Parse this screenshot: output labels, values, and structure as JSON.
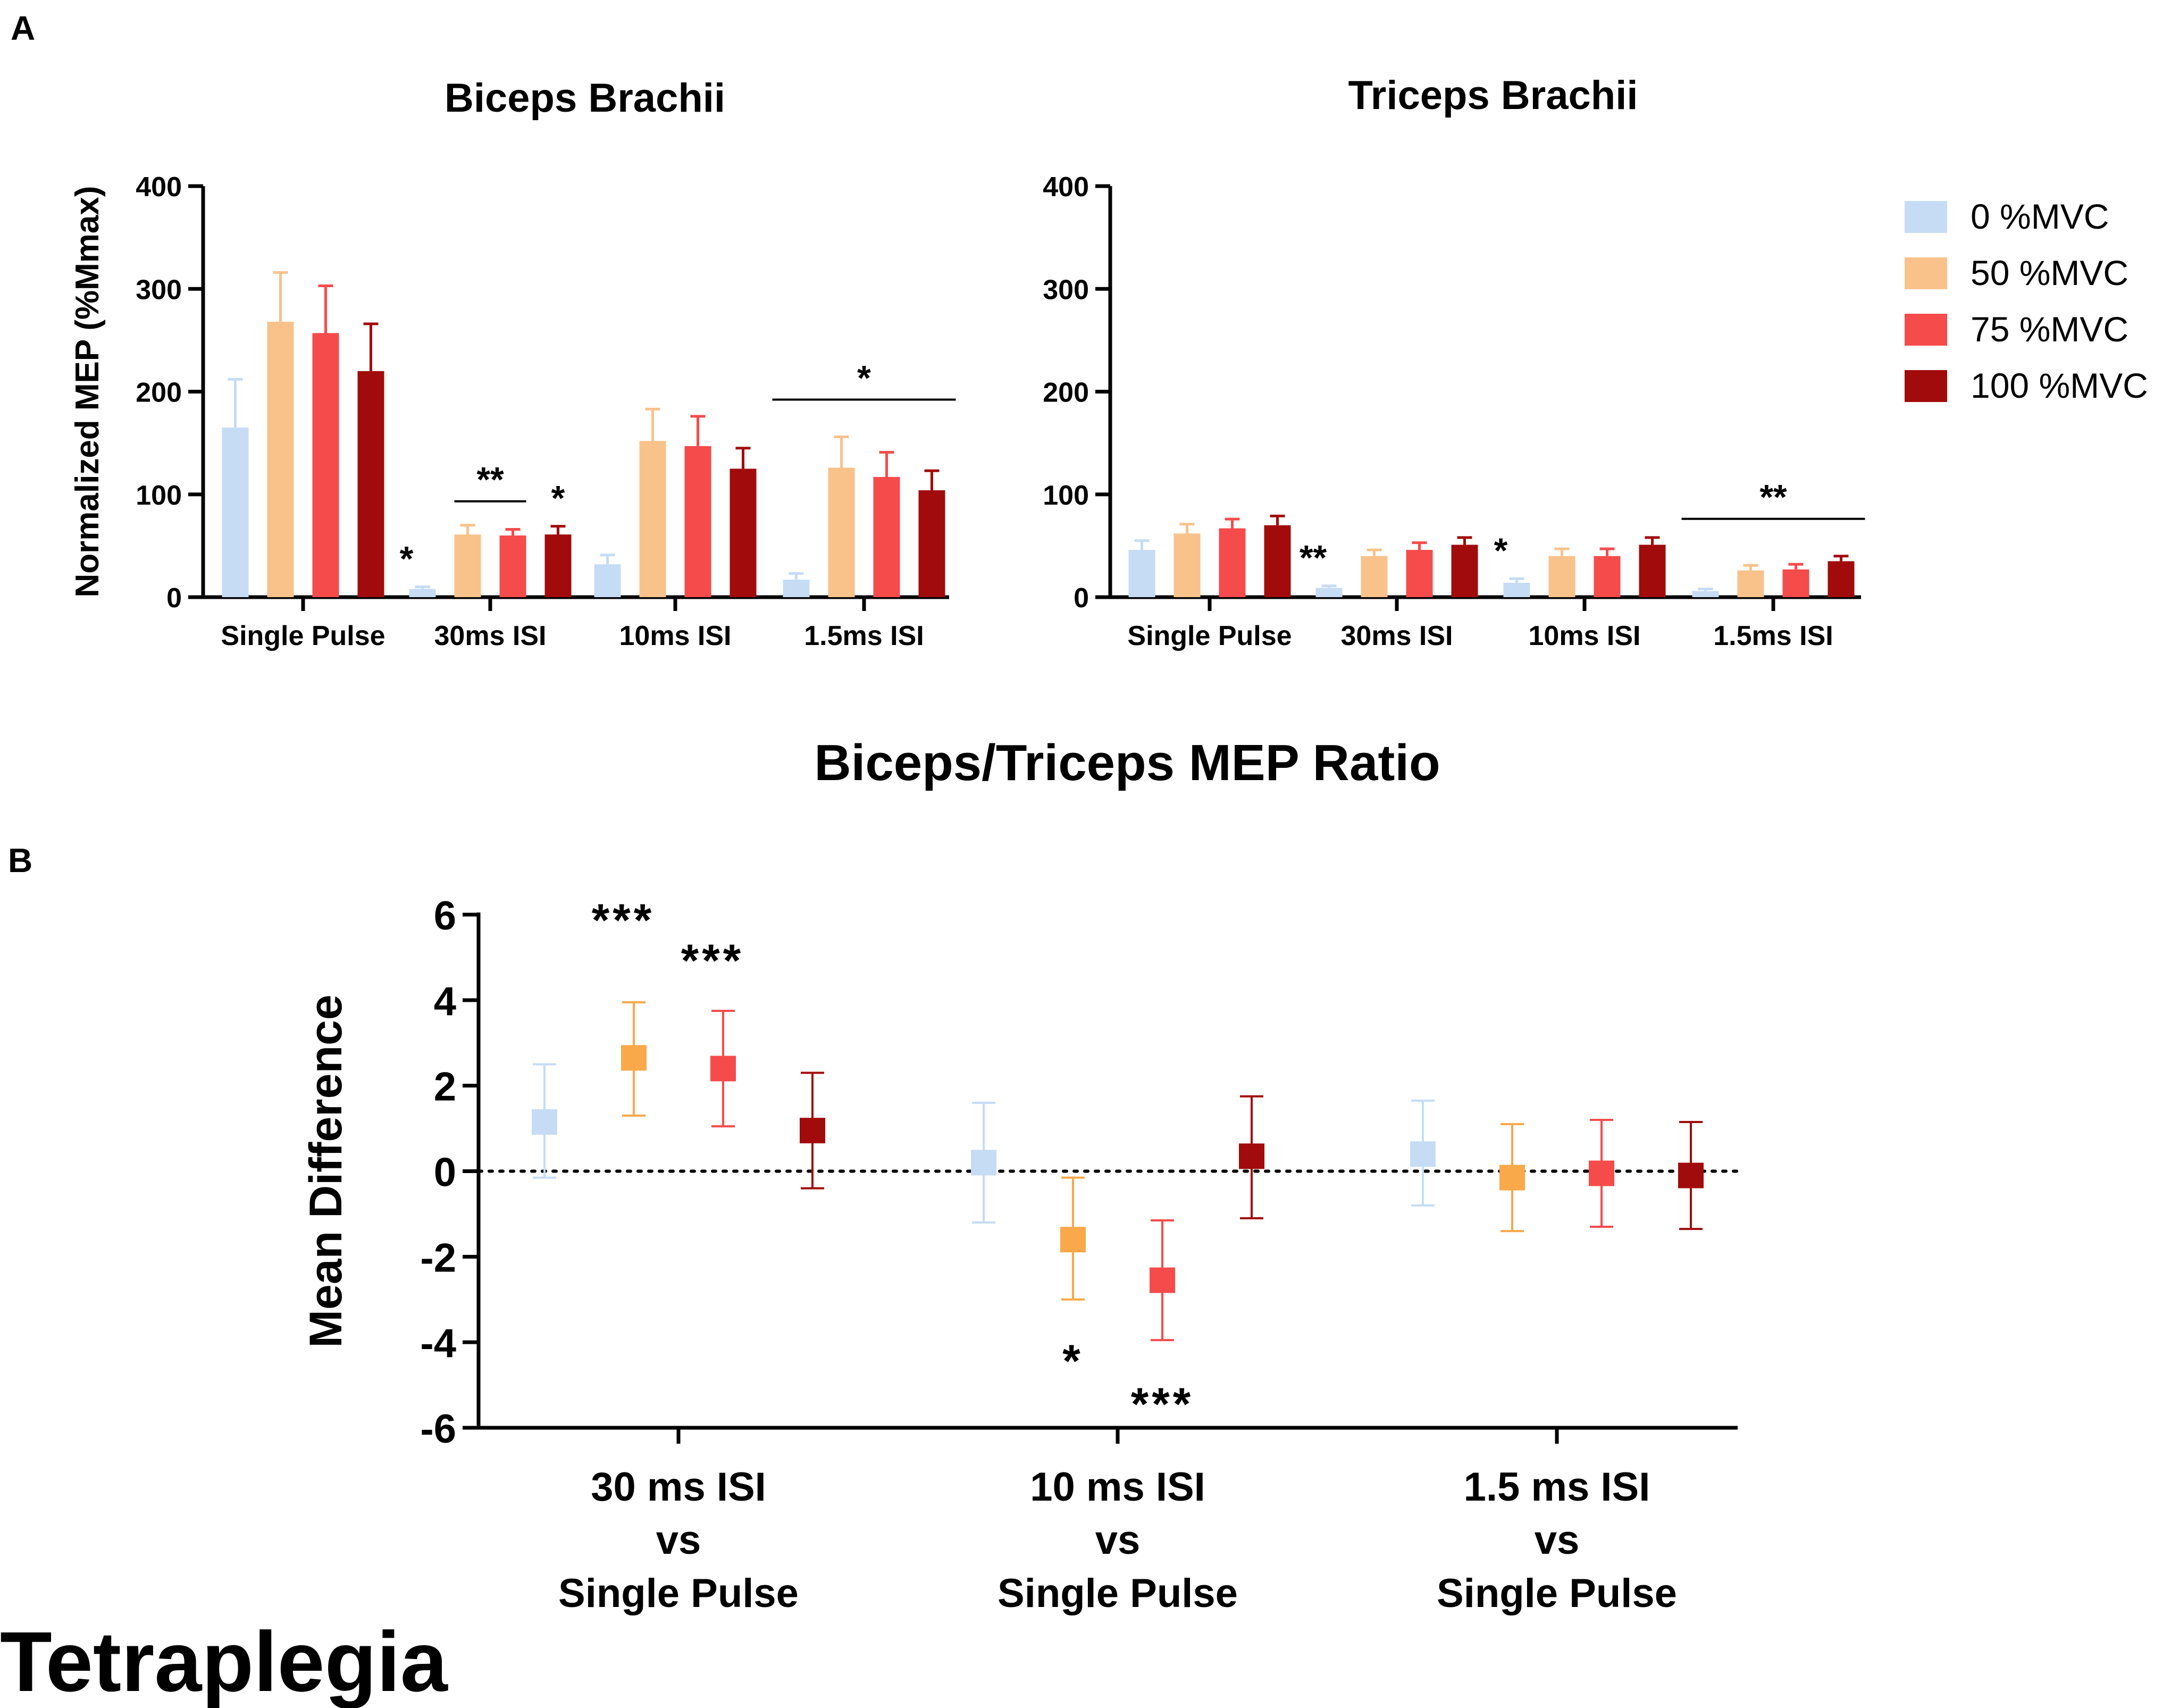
{
  "figure": {
    "panel_a_label": "A",
    "panel_b_label": "B",
    "group_label": "Tetraplegia"
  },
  "legend": [
    {
      "label": "0 %MVC",
      "color": "#c6dcf5"
    },
    {
      "label": "50 %MVC",
      "color": "#f9c28b"
    },
    {
      "label": "75 %MVC",
      "color": "#f64b4b"
    },
    {
      "label": "100 %MVC",
      "color": "#a10b0b"
    }
  ],
  "chart_data": [
    {
      "type": "bar",
      "title": "Biceps Brachii",
      "xlabel": "",
      "ylabel": "Normalized MEP (%Mmax)",
      "ylim": [
        0,
        400
      ],
      "yticks": [
        "0",
        "100",
        "200",
        "300",
        "400"
      ],
      "categories": [
        "Single Pulse",
        "30ms ISI",
        "10ms ISI",
        "1.5ms ISI"
      ],
      "series": [
        {
          "name": "0 %MVC",
          "color": "#c6dcf5",
          "values": [
            165,
            8,
            32,
            17
          ],
          "errors": [
            47,
            2,
            9,
            6
          ]
        },
        {
          "name": "50 %MVC",
          "color": "#f9c28b",
          "values": [
            268,
            61,
            152,
            126
          ],
          "errors": [
            48,
            9,
            31,
            30
          ]
        },
        {
          "name": "75 %MVC",
          "color": "#f64b4b",
          "values": [
            257,
            60,
            147,
            117
          ],
          "errors": [
            46,
            6,
            29,
            24
          ]
        },
        {
          "name": "100 %MVC",
          "color": "#a10b0b",
          "values": [
            220,
            61,
            125,
            104
          ],
          "errors": [
            46,
            8,
            20,
            19
          ]
        }
      ],
      "annotations": [
        {
          "text": "*",
          "category": 1,
          "series": 0
        },
        {
          "text": "**",
          "category": 1,
          "bracket": [
            1,
            2
          ]
        },
        {
          "text": "*",
          "category": 1,
          "series": 3
        },
        {
          "text": "*",
          "category": 3,
          "bracket": [
            0,
            3
          ]
        }
      ]
    },
    {
      "type": "bar",
      "title": "Triceps Brachii",
      "xlabel": "",
      "ylabel": "",
      "ylim": [
        0,
        400
      ],
      "yticks": [
        "0",
        "100",
        "200",
        "300",
        "400"
      ],
      "categories": [
        "Single Pulse",
        "30ms ISI",
        "10ms ISI",
        "1.5ms ISI"
      ],
      "series": [
        {
          "name": "0 %MVC",
          "color": "#c6dcf5",
          "values": [
            46,
            9,
            14,
            6
          ],
          "errors": [
            9,
            2,
            4,
            2
          ]
        },
        {
          "name": "50 %MVC",
          "color": "#f9c28b",
          "values": [
            62,
            40,
            40,
            26
          ],
          "errors": [
            9,
            6,
            7,
            5
          ]
        },
        {
          "name": "75 %MVC",
          "color": "#f64b4b",
          "values": [
            67,
            46,
            40,
            27
          ],
          "errors": [
            9,
            7,
            7,
            5
          ]
        },
        {
          "name": "100 %MVC",
          "color": "#a10b0b",
          "values": [
            70,
            51,
            51,
            35
          ],
          "errors": [
            9,
            7,
            7,
            5
          ]
        }
      ],
      "annotations": [
        {
          "text": "**",
          "category": 1,
          "series": 0
        },
        {
          "text": "*",
          "category": 2,
          "series": 0
        },
        {
          "text": "**",
          "category": 3,
          "bracket": [
            0,
            3
          ]
        }
      ]
    },
    {
      "type": "scatter",
      "title": "Biceps/Triceps MEP Ratio",
      "xlabel": "",
      "ylabel": "Mean Difference",
      "ylim": [
        -6,
        6
      ],
      "yticks": [
        "-6",
        "-4",
        "-2",
        "0",
        "2",
        "4",
        "6"
      ],
      "categories": [
        [
          "30 ms ISI",
          "vs",
          "Single Pulse"
        ],
        [
          "10 ms ISI",
          "vs",
          "Single Pulse"
        ],
        [
          "1.5 ms ISI",
          "vs",
          "Single Pulse"
        ]
      ],
      "series": [
        {
          "name": "0 %MVC",
          "color": "#c6dcf5",
          "values": [
            1.15,
            0.2,
            0.4
          ],
          "lower": [
            -0.15,
            -1.2,
            -0.8
          ],
          "upper": [
            2.5,
            1.6,
            1.65
          ]
        },
        {
          "name": "50 %MVC",
          "color": "#f9a84a",
          "values": [
            2.65,
            -1.6,
            -0.15
          ],
          "lower": [
            1.3,
            -3.0,
            -1.4
          ],
          "upper": [
            3.95,
            -0.15,
            1.1
          ]
        },
        {
          "name": "75 %MVC",
          "color": "#f64b4b",
          "values": [
            2.4,
            -2.55,
            -0.05
          ],
          "lower": [
            1.05,
            -3.95,
            -1.3
          ],
          "upper": [
            3.75,
            -1.15,
            1.2
          ]
        },
        {
          "name": "100 %MVC",
          "color": "#a10b0b",
          "values": [
            0.95,
            0.35,
            -0.1
          ],
          "lower": [
            -0.4,
            -1.1,
            -1.35
          ],
          "upper": [
            2.3,
            1.75,
            1.15
          ]
        }
      ],
      "reference_line": 0,
      "annotations": [
        {
          "text": "***",
          "category": 0,
          "series": 1,
          "position": "above"
        },
        {
          "text": "***",
          "category": 0,
          "series": 2,
          "position": "above"
        },
        {
          "text": "*",
          "category": 1,
          "series": 1,
          "position": "below"
        },
        {
          "text": "***",
          "category": 1,
          "series": 2,
          "position": "below"
        }
      ]
    }
  ]
}
